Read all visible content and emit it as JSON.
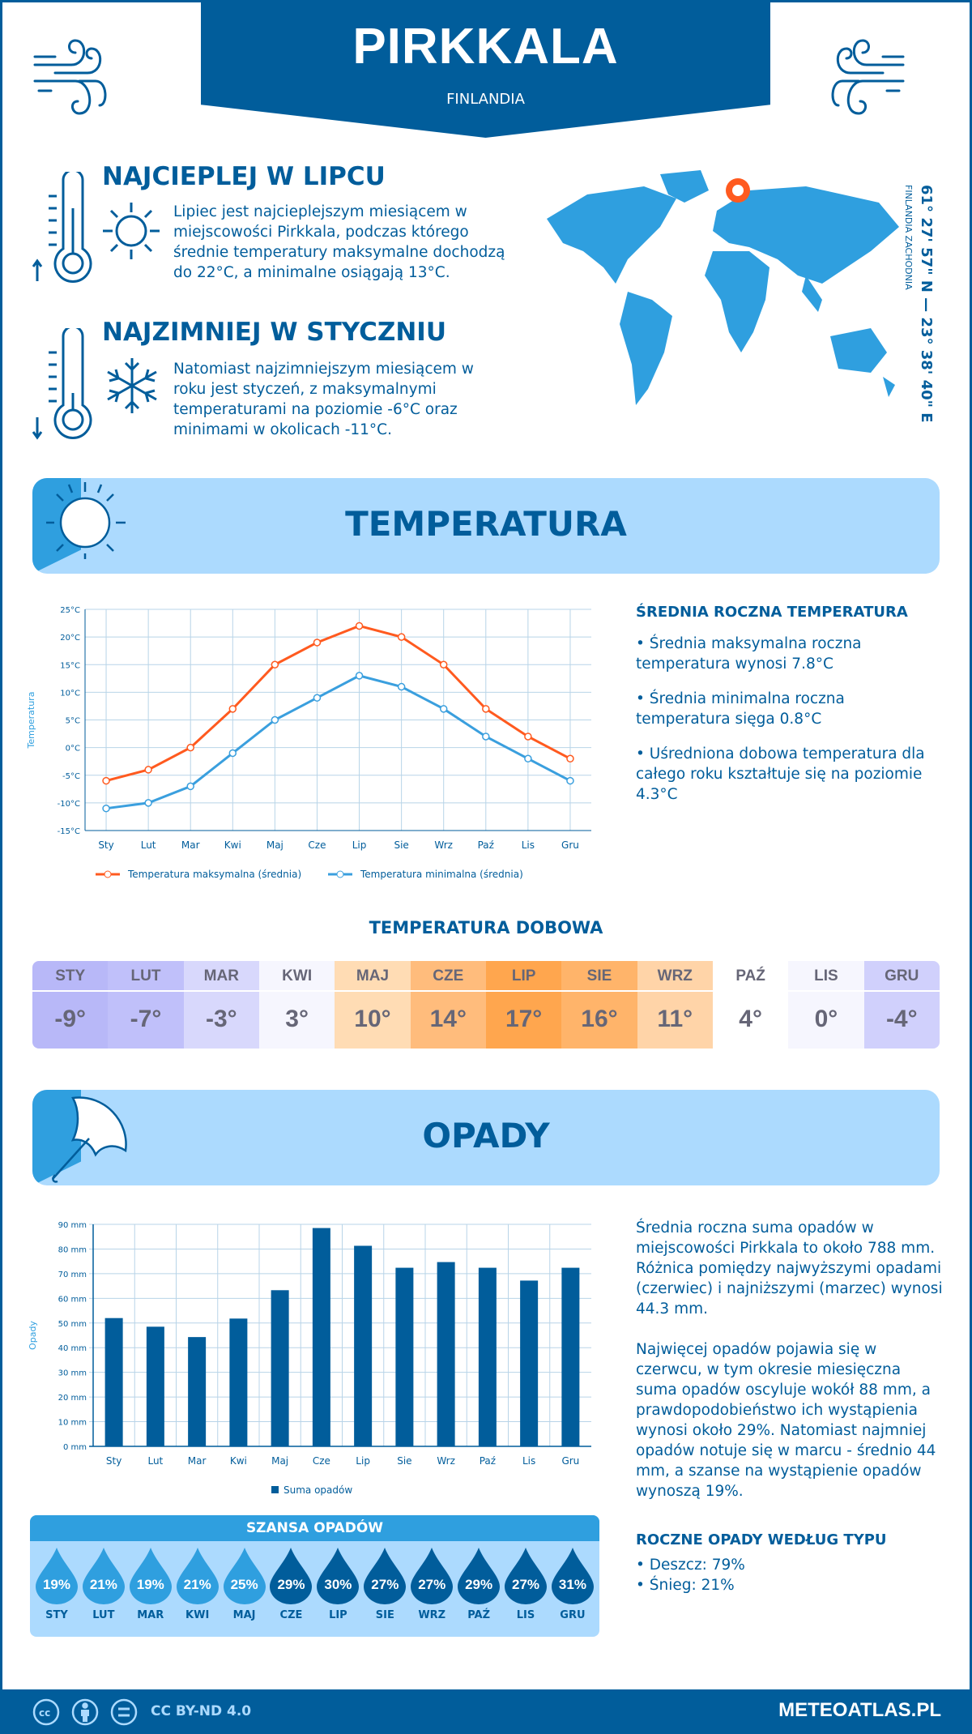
{
  "header": {
    "title": "PIRKKALA",
    "country": "FINLANDIA"
  },
  "warmest": {
    "title": "NAJCIEPLEJ W LIPCU",
    "text": "Lipiec jest najcieplejszym miesiącem w miejscowości Pirkkala, podczas którego średnie temperatury maksymalne dochodzą do 22°C, a minimalne osiągają 13°C."
  },
  "coldest": {
    "title": "NAJZIMNIEJ W STYCZNIU",
    "text": "Natomiast najzimniejszym miesiącem w roku jest styczeń, z maksymalnymi temperaturami na poziomie -6°C oraz minimami w okolicach -11°C."
  },
  "map": {
    "coords": "61° 27' 57\" N — 23° 38' 40\" E",
    "region": "FINLANDIA ZACHODNIA"
  },
  "temp_section": {
    "title": "TEMPERATURA"
  },
  "temp_summary": {
    "heading": "ŚREDNIA ROCZNA TEMPERATURA",
    "items": [
      "• Średnia maksymalna roczna temperatura wynosi 7.8°C",
      "• Średnia minimalna roczna temperatura sięga 0.8°C",
      "• Uśredniona dobowa temperatura dla całego roku kształtuje się na poziomie 4.3°C"
    ]
  },
  "daily": {
    "title": "TEMPERATURA DOBOWA",
    "months": [
      "STY",
      "LUT",
      "MAR",
      "KWI",
      "MAJ",
      "CZE",
      "LIP",
      "SIE",
      "WRZ",
      "PAŹ",
      "LIS",
      "GRU"
    ],
    "values": [
      "-9°",
      "-7°",
      "-3°",
      "3°",
      "10°",
      "14°",
      "17°",
      "16°",
      "11°",
      "4°",
      "0°",
      "-4°"
    ],
    "colors": [
      "#b8b8f8",
      "#c0c0fa",
      "#d8d8fc",
      "#f6f6fe",
      "#ffdcb4",
      "#ffbc7c",
      "#ffa64e",
      "#ffb46a",
      "#ffd4a8",
      "#ffffff",
      "#f6f6fe",
      "#d0d0fc"
    ]
  },
  "precip_section": {
    "title": "OPADY"
  },
  "precip_text": [
    "Średnia roczna suma opadów w miejscowości Pirkkala to około 788 mm. Różnica pomiędzy najwyższymi opadami (czerwiec) i najniższymi (marzec) wynosi 44.3 mm.",
    "Najwięcej opadów pojawia się w czerwcu, w tym okresie miesięczna suma opadów oscyluje wokół 88 mm, a prawdopodobieństwo ich wystąpienia wynosi około 29%. Natomiast najmniej opadów notuje się w marcu - średnio 44 mm, a szanse na wystąpienie opadów wynoszą 19%."
  ],
  "chance": {
    "title": "SZANSA OPADÓW",
    "months": [
      "STY",
      "LUT",
      "MAR",
      "KWI",
      "MAJ",
      "CZE",
      "LIP",
      "SIE",
      "WRZ",
      "PAŹ",
      "LIS",
      "GRU"
    ],
    "values": [
      "19%",
      "21%",
      "19%",
      "21%",
      "25%",
      "29%",
      "30%",
      "27%",
      "27%",
      "29%",
      "27%",
      "31%"
    ],
    "light": "#2f9fdf",
    "dark": "#015d9b"
  },
  "precip_type": {
    "heading": "ROCZNE OPADY WEDŁUG TYPU",
    "items": [
      "• Deszcz: 79%",
      "• Śnieg: 21%"
    ]
  },
  "footer": {
    "license": "CC BY-ND 4.0",
    "site": "METEOATLAS.PL"
  },
  "chart_data": [
    {
      "type": "line",
      "title": "",
      "ylabel": "Temperatura",
      "xlabel": "",
      "ylim": [
        -15,
        25
      ],
      "yticks": [
        "-15°C",
        "-10°C",
        "-5°C",
        "0°C",
        "5°C",
        "10°C",
        "15°C",
        "20°C",
        "25°C"
      ],
      "categories": [
        "Sty",
        "Lut",
        "Mar",
        "Kwi",
        "Maj",
        "Cze",
        "Lip",
        "Sie",
        "Wrz",
        "Paź",
        "Lis",
        "Gru"
      ],
      "series": [
        {
          "name": "Temperatura maksymalna (średnia)",
          "color": "#ff5a1f",
          "values": [
            -6,
            -4,
            0,
            7,
            15,
            19,
            22,
            20,
            15,
            7,
            2,
            -2
          ]
        },
        {
          "name": "Temperatura minimalna (średnia)",
          "color": "#3a9fde",
          "values": [
            -11,
            -10,
            -7,
            -1,
            5,
            9,
            13,
            11,
            7,
            2,
            -2,
            -6
          ]
        }
      ],
      "legend": "bottom"
    },
    {
      "type": "bar",
      "title": "",
      "ylabel": "Opady",
      "xlabel": "",
      "ylim": [
        0,
        90
      ],
      "yticks": [
        "0 mm",
        "10 mm",
        "20 mm",
        "30 mm",
        "40 mm",
        "50 mm",
        "60 mm",
        "70 mm",
        "80 mm",
        "90 mm"
      ],
      "categories": [
        "Sty",
        "Lut",
        "Mar",
        "Kwi",
        "Maj",
        "Cze",
        "Lip",
        "Sie",
        "Wrz",
        "Paź",
        "Lis",
        "Gru"
      ],
      "series": [
        {
          "name": "Suma opadów",
          "color": "#015d9b",
          "values": [
            52,
            48.5,
            44.3,
            51.8,
            63.3,
            88.5,
            81.3,
            72.4,
            74.7,
            72.4,
            67.2,
            72.4
          ]
        }
      ],
      "legend": "bottom"
    }
  ]
}
